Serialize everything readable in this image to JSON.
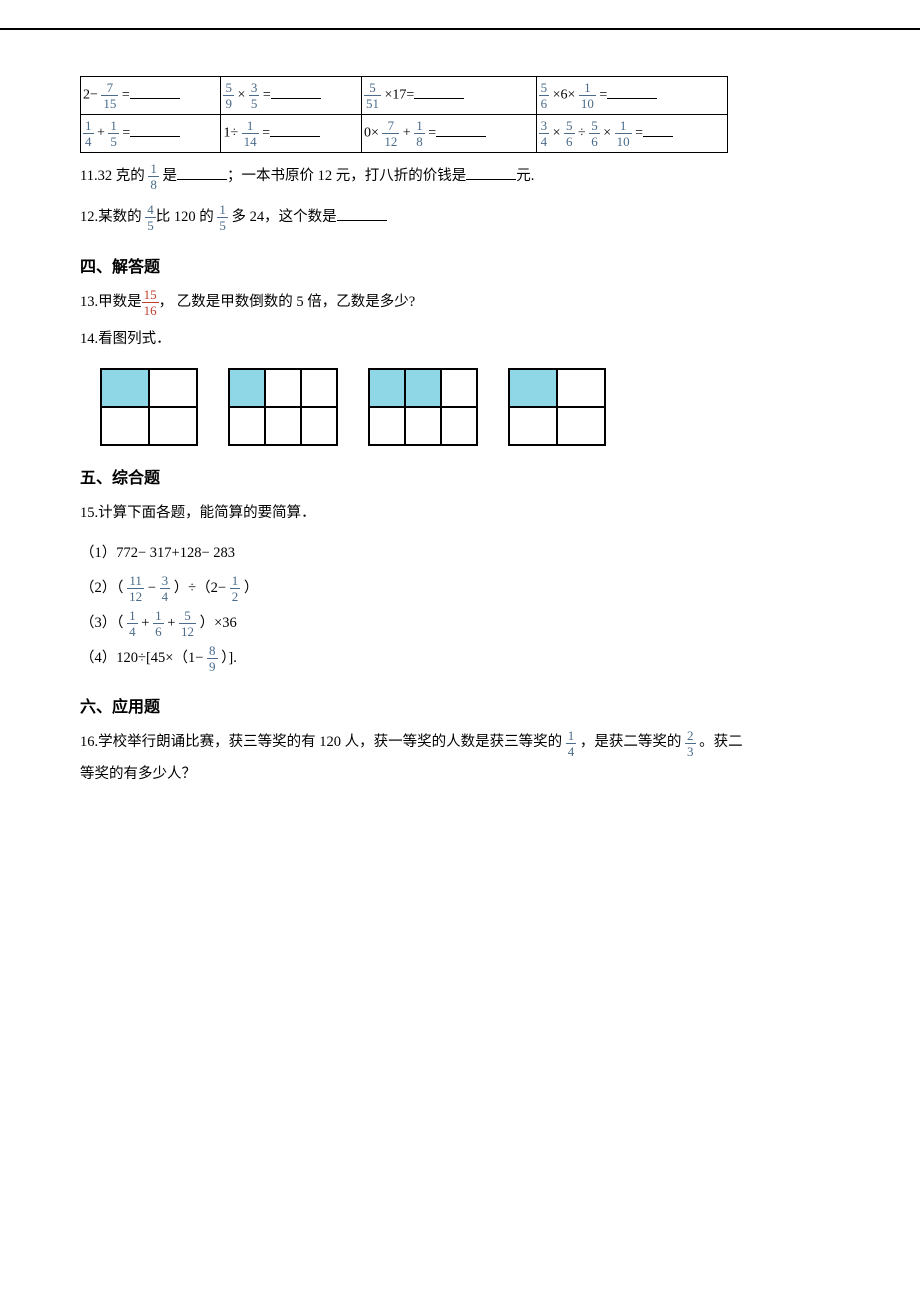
{
  "table": {
    "rows": [
      [
        {
          "pre": "2−  ",
          "f": {
            "n": "7",
            "d": "15"
          },
          "post": " ="
        },
        {
          "f": {
            "n": "5",
            "d": "9"
          },
          "mid": " × ",
          "f2": {
            "n": "3",
            "d": "5"
          },
          "post": " ="
        },
        {
          "f": {
            "n": "5",
            "d": "51"
          },
          "mid": " ×17=",
          "post": ""
        },
        {
          "f": {
            "n": "5",
            "d": "6"
          },
          "mid": " ×6× ",
          "f2": {
            "n": "1",
            "d": "10"
          },
          "post": " ="
        }
      ],
      [
        {
          "f": {
            "n": "1",
            "d": "4"
          },
          "mid": " + ",
          "f2": {
            "n": "1",
            "d": "5"
          },
          "post": " ="
        },
        {
          "pre": "1÷ ",
          "f": {
            "n": "1",
            "d": "14"
          },
          "post": " ="
        },
        {
          "pre": "0× ",
          "f": {
            "n": "7",
            "d": "12"
          },
          "mid": " + ",
          "f2": {
            "n": "1",
            "d": "8"
          },
          "post": " ="
        },
        {
          "f": {
            "n": "3",
            "d": "4"
          },
          "mid": " × ",
          "f2": {
            "n": "5",
            "d": "6"
          },
          "mid2": " ÷ ",
          "f3": {
            "n": "5",
            "d": "6"
          },
          "mid3": " × ",
          "f4": {
            "n": "1",
            "d": "10"
          },
          "post": " ="
        }
      ]
    ]
  },
  "q11": {
    "pre": "11.32 克的  ",
    "frac": {
      "n": "1",
      "d": "8"
    },
    "mid": " 是",
    "post1": "；一本书原价 12 元，打八折的价钱是",
    "tail": "元."
  },
  "q12": {
    "pre": "12.某数的 ",
    "f1": {
      "n": "4",
      "d": "5"
    },
    "mid1": "比 120 的 ",
    "f2": {
      "n": "1",
      "d": "5"
    },
    "mid2": " 多 24，这个数是"
  },
  "sec4": "四、解答题",
  "q13": {
    "pre": "13.甲数是",
    "frac": {
      "n": "15",
      "d": "16"
    },
    "post": "，  乙数是甲数倒数的 5 倍，乙数是多少?"
  },
  "q14": "14.看图列式．",
  "grids": {
    "shaded_color": "#8fd7e6",
    "bg_color": "#ffffff",
    "items": [
      {
        "cols": 2,
        "rows": 2,
        "shaded": [
          0
        ]
      },
      {
        "cols": 3,
        "rows": 2,
        "shaded": [
          0
        ]
      },
      {
        "cols": 3,
        "rows": 2,
        "shaded": [
          0,
          1
        ]
      },
      {
        "cols": 2,
        "rows": 2,
        "shaded": [
          0
        ]
      }
    ]
  },
  "sec5": "五、综合题",
  "q15": "15.计算下面各题，能简算的要简算．",
  "q15_1": "（1）772− 317+128− 283",
  "q15_2": {
    "pre": "（2）（ ",
    "f1": {
      "n": "11",
      "d": "12"
    },
    "mid1": " − ",
    "f2": {
      "n": "3",
      "d": "4"
    },
    "mid2": " ）÷（2−  ",
    "f3": {
      "n": "1",
      "d": "2"
    },
    "post": " ）"
  },
  "q15_3": {
    "pre": "（3）（ ",
    "f1": {
      "n": "1",
      "d": "4"
    },
    "mid1": " + ",
    "f2": {
      "n": "1",
      "d": "6"
    },
    "mid2": " + ",
    "f3": {
      "n": "5",
      "d": "12"
    },
    "post": " ）×36"
  },
  "q15_4": {
    "pre": "（4）120÷[45×（1−  ",
    "f1": {
      "n": "8",
      "d": "9"
    },
    "post": " ）]."
  },
  "sec6": "六、应用题",
  "q16": {
    "pre": "16.学校举行朗诵比赛，获三等奖的有 120 人，获一等奖的人数是获三等奖的 ",
    "f1": {
      "n": "1",
      "d": "4"
    },
    "mid1": " ，是获二等奖的 ",
    "f2": {
      "n": "2",
      "d": "3"
    },
    "post": " 。获二",
    "line2": "等奖的有多少人？"
  }
}
